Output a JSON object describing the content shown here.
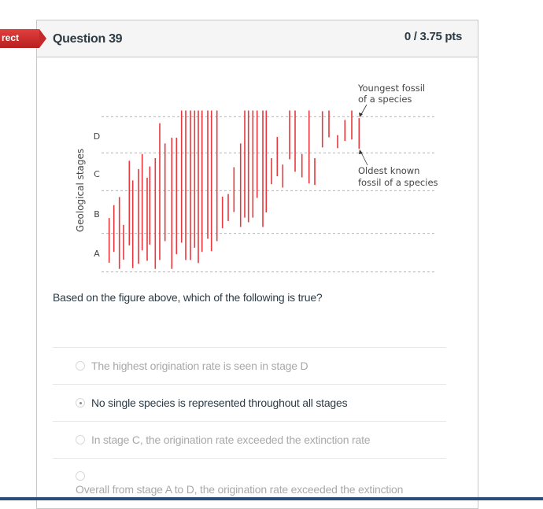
{
  "badge": {
    "label": "rect",
    "color": "#c42a29"
  },
  "question": {
    "title": "Question 39",
    "points": "0 / 3.75 pts",
    "prompt": "Based on the figure above, which of the following is true?"
  },
  "answers": [
    {
      "label": "The highest origination rate is seen in stage D",
      "selected": false
    },
    {
      "label": "No single species is represented throughout all stages",
      "selected": true
    },
    {
      "label": "In stage C, the origination rate exceeded the extinction rate",
      "selected": false
    },
    {
      "label": "Overall from stage A to D, the origination rate exceeded the extinction",
      "selected": false
    }
  ],
  "chart_data": {
    "type": "range-bar",
    "ylabel": "Geological stages",
    "stage_labels": [
      "A",
      "B",
      "C",
      "D"
    ],
    "ylim": [
      0,
      4
    ],
    "bar_color": "#e8383d",
    "annotations": {
      "top": [
        "Youngest fossil",
        "of a species"
      ],
      "bottom": [
        "Oldest known",
        "fossil of a species"
      ]
    },
    "species_ranges": [
      [
        0.24,
        1.36
      ],
      [
        0.52,
        1.66
      ],
      [
        0.08,
        1.85
      ],
      [
        0.32,
        1.2
      ],
      [
        0.69,
        2.79
      ],
      [
        0.1,
        2.27
      ],
      [
        0.21,
        2.57
      ],
      [
        0.56,
        2.97
      ],
      [
        0.29,
        2.34
      ],
      [
        0.71,
        2.64
      ],
      [
        0.08,
        2.86
      ],
      [
        0.31,
        3.82
      ],
      [
        0.8,
        3.26
      ],
      [
        0.08,
        3.42
      ],
      [
        0.46,
        3.42
      ],
      [
        0.76,
        4.17
      ],
      [
        0.31,
        4.17
      ],
      [
        0.31,
        4.17
      ],
      [
        0.63,
        4.17
      ],
      [
        0.23,
        4.17
      ],
      [
        0.52,
        4.17
      ],
      [
        0.86,
        4.17
      ],
      [
        0.54,
        4.17
      ],
      [
        0.8,
        4.17
      ],
      [
        1.12,
        1.86
      ],
      [
        1.29,
        1.92
      ],
      [
        1.5,
        2.62
      ],
      [
        1.15,
        3.26
      ],
      [
        1.37,
        4.17
      ],
      [
        1.26,
        4.17
      ],
      [
        1.37,
        4.17
      ],
      [
        1.83,
        4.17
      ],
      [
        1.15,
        4.17
      ],
      [
        1.49,
        4.17
      ],
      [
        2.17,
        2.86
      ],
      [
        2.38,
        3.44
      ],
      [
        2.08,
        2.69
      ],
      [
        2.83,
        4.17
      ],
      [
        2.5,
        4.17
      ],
      [
        2.35,
        2.97
      ],
      [
        2.19,
        4.17
      ],
      [
        2.15,
        2.86
      ],
      [
        3.15,
        4.15
      ],
      [
        3.43,
        4.17
      ],
      [
        3.13,
        3.49
      ],
      [
        3.33,
        3.91
      ],
      [
        3.37,
        4.17
      ],
      [
        3.11,
        3.96
      ]
    ]
  }
}
